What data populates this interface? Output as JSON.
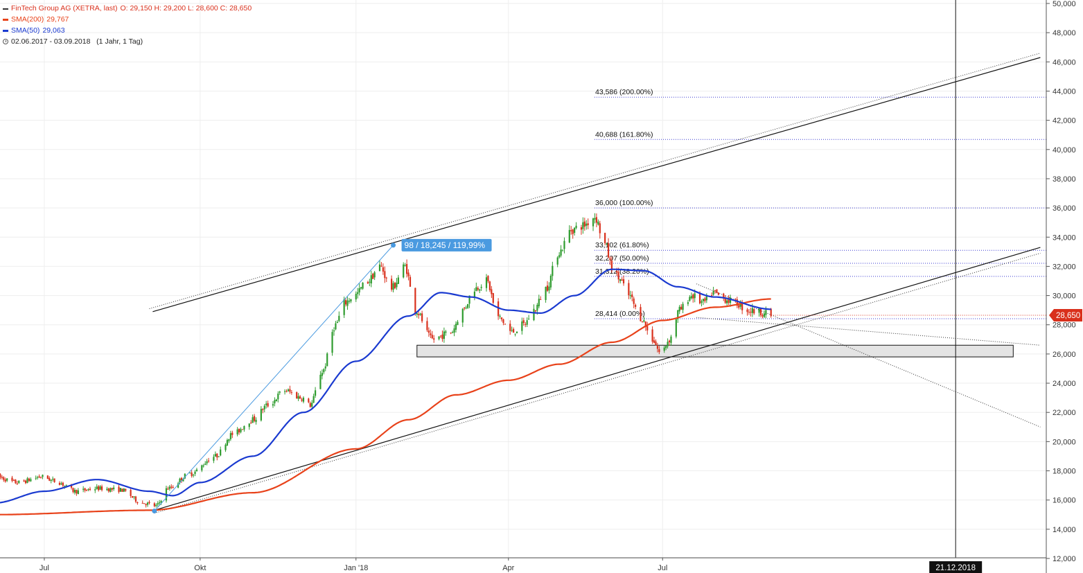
{
  "header": {
    "instrument": "FinTech Group AG (XETRA, last)",
    "ohlc": "O: 29,150  H: 29,200  L: 28,600  C: 28,650",
    "sma200_label": "SMA(200)",
    "sma200_value": "29,767",
    "sma50_label": "SMA(50)",
    "sma50_value": "29,063",
    "range": "02.06.2017 - 03.09.2018   (1 Jahr, 1 Tag)"
  },
  "colors": {
    "up": "#2e9b2e",
    "down": "#d9301c",
    "sma200": "#e8421a",
    "sma50": "#1a3ad0",
    "fib": "#3a3ad0",
    "measure": "#4a9ae0",
    "price_badge": "#d9301c"
  },
  "chart_data": {
    "type": "candlestick",
    "y_ticks": [
      "12,000",
      "14,000",
      "16,000",
      "18,000",
      "20,000",
      "22,000",
      "24,000",
      "26,000",
      "28,000",
      "30,000",
      "32,000",
      "34,000",
      "36,000",
      "38,000",
      "40,000",
      "42,000",
      "44,000",
      "46,000",
      "48,000",
      "50,000"
    ],
    "ylim": [
      12,
      50
    ],
    "x_ticks": [
      "Jul",
      "Okt",
      "Jan '18",
      "Apr",
      "Jul"
    ],
    "x_range": [
      "2017-06-02",
      "2018-09-03"
    ],
    "last_price_label": "28,650",
    "cursor_date_label": "21.12.2018",
    "measure_label": "98 / 18,245 / 119,99%",
    "fib_levels": [
      {
        "value": 43.586,
        "label": "43,586 (200.00%)"
      },
      {
        "value": 40.688,
        "label": "40,688 (161.80%)"
      },
      {
        "value": 36.0,
        "label": "36,000 (100.00%)"
      },
      {
        "value": 33.102,
        "label": "33,102 (61.80%)"
      },
      {
        "value": 32.207,
        "label": "32,207 (50.00%)"
      },
      {
        "value": 31.312,
        "label": "31,312 (38.20%)"
      },
      {
        "value": 28.414,
        "label": "28,414 (0.00%)"
      }
    ],
    "support_zone": {
      "low": 25.8,
      "high": 26.6,
      "from": "2018-02-06",
      "to": "2019-01-24"
    },
    "price_anchors": [
      [
        "2017-06-02",
        17.6
      ],
      [
        "2017-06-15",
        17.2
      ],
      [
        "2017-06-30",
        17.6
      ],
      [
        "2017-07-07",
        17.3
      ],
      [
        "2017-07-20",
        16.6
      ],
      [
        "2017-08-01",
        16.8
      ],
      [
        "2017-08-15",
        16.7
      ],
      [
        "2017-08-28",
        15.8
      ],
      [
        "2017-09-05",
        15.6
      ],
      [
        "2017-09-12",
        16.8
      ],
      [
        "2017-09-25",
        17.8
      ],
      [
        "2017-10-10",
        19.0
      ],
      [
        "2017-10-20",
        20.5
      ],
      [
        "2017-11-01",
        21.5
      ],
      [
        "2017-11-10",
        22.5
      ],
      [
        "2017-11-20",
        23.5
      ],
      [
        "2017-11-30",
        23.0
      ],
      [
        "2017-12-05",
        22.5
      ],
      [
        "2017-12-12",
        24.8
      ],
      [
        "2017-12-20",
        28.0
      ],
      [
        "2017-12-25",
        29.5
      ],
      [
        "2017-12-31",
        30.0
      ],
      [
        "2018-01-08",
        31.0
      ],
      [
        "2018-01-15",
        32.0
      ],
      [
        "2018-01-22",
        30.5
      ],
      [
        "2018-01-30",
        32.0
      ],
      [
        "2018-02-05",
        29.0
      ],
      [
        "2018-02-15",
        27.0
      ],
      [
        "2018-02-26",
        27.5
      ],
      [
        "2018-03-05",
        29.0
      ],
      [
        "2018-03-12",
        30.5
      ],
      [
        "2018-03-19",
        31.0
      ],
      [
        "2018-03-26",
        28.5
      ],
      [
        "2018-04-03",
        27.5
      ],
      [
        "2018-04-10",
        28.0
      ],
      [
        "2018-04-16",
        29.0
      ],
      [
        "2018-04-23",
        30.5
      ],
      [
        "2018-05-01",
        33.0
      ],
      [
        "2018-05-08",
        34.5
      ],
      [
        "2018-05-15",
        34.8
      ],
      [
        "2018-05-22",
        35.4
      ],
      [
        "2018-05-28",
        33.5
      ],
      [
        "2018-06-01",
        32.0
      ],
      [
        "2018-06-05",
        31.2
      ],
      [
        "2018-06-11",
        30.0
      ],
      [
        "2018-06-18",
        28.5
      ],
      [
        "2018-06-25",
        27.0
      ],
      [
        "2018-06-30",
        26.0
      ],
      [
        "2018-07-05",
        27.0
      ],
      [
        "2018-07-11",
        29.0
      ],
      [
        "2018-07-18",
        30.0
      ],
      [
        "2018-07-25",
        29.5
      ],
      [
        "2018-07-31",
        30.2
      ],
      [
        "2018-08-06",
        29.8
      ],
      [
        "2018-08-13",
        29.5
      ],
      [
        "2018-08-20",
        29.0
      ],
      [
        "2018-08-27",
        28.9
      ],
      [
        "2018-09-03",
        28.65
      ]
    ],
    "sma50_anchors": [
      [
        "2017-06-02",
        15.8
      ],
      [
        "2017-07-01",
        16.6
      ],
      [
        "2017-08-01",
        17.4
      ],
      [
        "2017-09-01",
        16.6
      ],
      [
        "2017-09-15",
        16.3
      ],
      [
        "2017-10-01",
        17.2
      ],
      [
        "2017-11-01",
        19.0
      ],
      [
        "2017-12-01",
        22.0
      ],
      [
        "2018-01-01",
        25.5
      ],
      [
        "2018-02-01",
        28.6
      ],
      [
        "2018-02-20",
        30.2
      ],
      [
        "2018-03-10",
        29.9
      ],
      [
        "2018-04-01",
        29.0
      ],
      [
        "2018-04-20",
        28.8
      ],
      [
        "2018-05-10",
        30.0
      ],
      [
        "2018-06-01",
        31.8
      ],
      [
        "2018-06-20",
        31.7
      ],
      [
        "2018-07-10",
        30.6
      ],
      [
        "2018-08-01",
        29.9
      ],
      [
        "2018-09-03",
        29.063
      ]
    ],
    "sma200_anchors": [
      [
        "2017-06-02",
        15.0
      ],
      [
        "2017-09-01",
        15.3
      ],
      [
        "2017-11-01",
        16.5
      ],
      [
        "2018-01-01",
        19.5
      ],
      [
        "2018-02-01",
        21.5
      ],
      [
        "2018-03-01",
        23.2
      ],
      [
        "2018-04-01",
        24.2
      ],
      [
        "2018-05-01",
        25.3
      ],
      [
        "2018-06-01",
        26.8
      ],
      [
        "2018-07-01",
        28.3
      ],
      [
        "2018-08-01",
        29.2
      ],
      [
        "2018-09-03",
        29.767
      ]
    ]
  }
}
